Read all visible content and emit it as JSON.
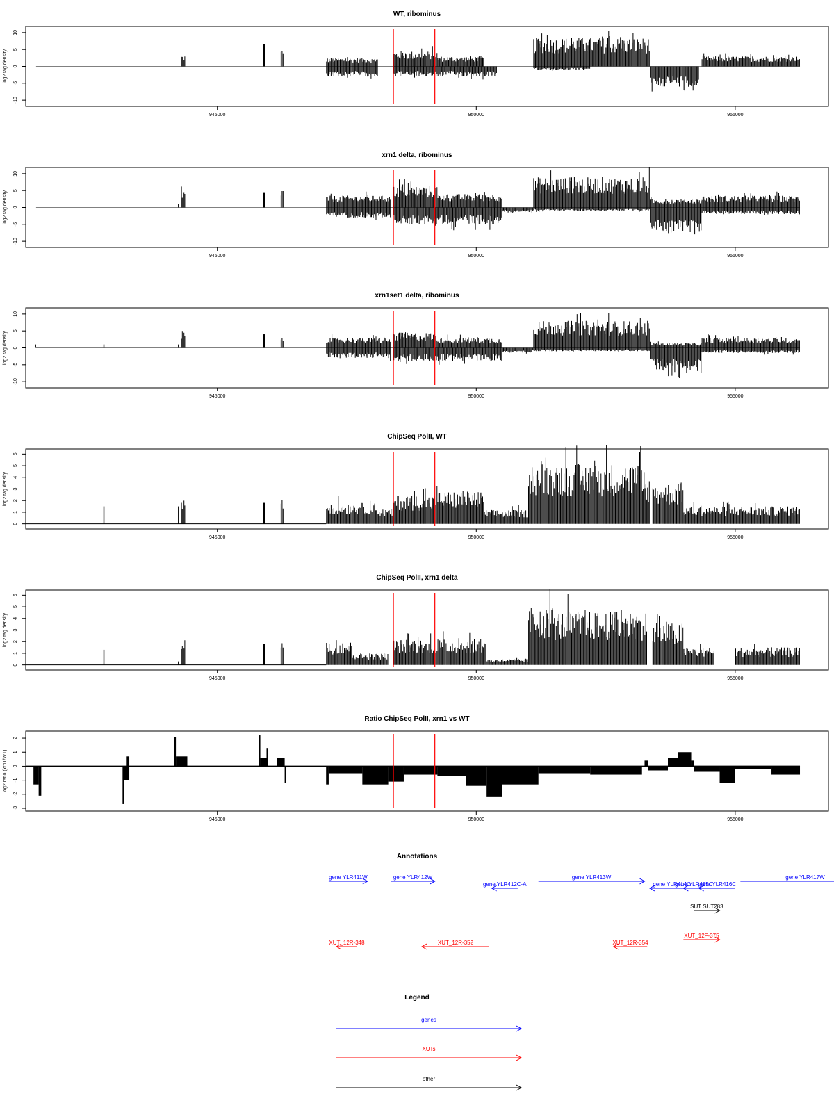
{
  "chart_data": [
    {
      "type": "bar",
      "title": "WT, ribominus",
      "xlabel": "",
      "ylabel": "log2 tag density",
      "xlim": [
        941300,
        956800
      ],
      "ylim": [
        -11,
        11
      ],
      "xticks": [
        "945000",
        "950000",
        "955000"
      ],
      "yticks": [
        "10",
        "5",
        "0",
        "-5",
        "-10"
      ],
      "grid": false,
      "red_lines": [
        948400,
        949200
      ],
      "positive_blocks": [
        {
          "start": 944300,
          "end": 944380,
          "height": 3.5
        },
        {
          "start": 945880,
          "end": 945920,
          "height": 6.5
        },
        {
          "start": 946220,
          "end": 946280,
          "height": 5
        },
        {
          "start": 947100,
          "end": 948100,
          "height": 2.5
        },
        {
          "start": 948400,
          "end": 949250,
          "height": 4.5
        },
        {
          "start": 949250,
          "end": 950150,
          "height": 3
        },
        {
          "start": 951100,
          "end": 953350,
          "height": 8.5
        },
        {
          "start": 954350,
          "end": 956250,
          "height": 3
        }
      ],
      "negative_blocks": [
        {
          "start": 947100,
          "end": 948100,
          "height": -3
        },
        {
          "start": 948400,
          "end": 950400,
          "height": -3
        },
        {
          "start": 951100,
          "end": 952200,
          "height": -1
        },
        {
          "start": 953350,
          "end": 954300,
          "height": -6
        }
      ]
    },
    {
      "type": "bar",
      "title": "xrn1 delta, ribominus",
      "xlabel": "",
      "ylabel": "log2 tag density",
      "xlim": [
        941300,
        956800
      ],
      "ylim": [
        -11,
        11
      ],
      "xticks": [
        "945000",
        "950000",
        "955000"
      ],
      "yticks": [
        "10",
        "5",
        "0",
        "-5",
        "-10"
      ],
      "grid": false,
      "red_lines": [
        948400,
        949200
      ],
      "positive_blocks": [
        {
          "start": 944240,
          "end": 944260,
          "height": 1
        },
        {
          "start": 944300,
          "end": 944380,
          "height": 5.5
        },
        {
          "start": 945880,
          "end": 945920,
          "height": 4.5
        },
        {
          "start": 946220,
          "end": 946280,
          "height": 5.5
        },
        {
          "start": 947100,
          "end": 948350,
          "height": 3.5
        },
        {
          "start": 948400,
          "end": 949250,
          "height": 6.5
        },
        {
          "start": 949250,
          "end": 950500,
          "height": 4
        },
        {
          "start": 951100,
          "end": 953350,
          "height": 9
        },
        {
          "start": 953350,
          "end": 954350,
          "height": 2.5
        },
        {
          "start": 954350,
          "end": 956250,
          "height": 3.5
        }
      ],
      "negative_blocks": [
        {
          "start": 947100,
          "end": 948350,
          "height": -3
        },
        {
          "start": 948400,
          "end": 950500,
          "height": -5
        },
        {
          "start": 950500,
          "end": 951100,
          "height": -1.5
        },
        {
          "start": 951100,
          "end": 953350,
          "height": -1
        },
        {
          "start": 953350,
          "end": 954350,
          "height": -7.5
        },
        {
          "start": 954350,
          "end": 956250,
          "height": -2
        }
      ]
    },
    {
      "type": "bar",
      "title": "xrn1set1 delta, ribominus",
      "xlabel": "",
      "ylabel": "log2 tag density",
      "xlim": [
        941300,
        956800
      ],
      "ylim": [
        -11,
        11
      ],
      "xticks": [
        "945000",
        "950000",
        "955000"
      ],
      "yticks": [
        "10",
        "5",
        "0",
        "-5",
        "-10"
      ],
      "grid": false,
      "red_lines": [
        948400,
        949200
      ],
      "positive_blocks": [
        {
          "start": 941480,
          "end": 941500,
          "height": 1
        },
        {
          "start": 942800,
          "end": 942820,
          "height": 1
        },
        {
          "start": 944240,
          "end": 944260,
          "height": 1
        },
        {
          "start": 944300,
          "end": 944380,
          "height": 5
        },
        {
          "start": 945880,
          "end": 945920,
          "height": 4
        },
        {
          "start": 946220,
          "end": 946280,
          "height": 4
        },
        {
          "start": 947100,
          "end": 948350,
          "height": 3
        },
        {
          "start": 948400,
          "end": 949250,
          "height": 4.5
        },
        {
          "start": 949250,
          "end": 950500,
          "height": 3
        },
        {
          "start": 951100,
          "end": 953350,
          "height": 8
        },
        {
          "start": 953350,
          "end": 954350,
          "height": 1.5
        },
        {
          "start": 954350,
          "end": 956250,
          "height": 3
        }
      ],
      "negative_blocks": [
        {
          "start": 947100,
          "end": 948350,
          "height": -3
        },
        {
          "start": 948400,
          "end": 950500,
          "height": -4
        },
        {
          "start": 950500,
          "end": 951100,
          "height": -1.5
        },
        {
          "start": 951100,
          "end": 953350,
          "height": -1
        },
        {
          "start": 953350,
          "end": 954350,
          "height": -7
        },
        {
          "start": 954350,
          "end": 956250,
          "height": -1.5
        }
      ]
    },
    {
      "type": "bar",
      "title": "ChipSeq PolII, WT",
      "xlabel": "",
      "ylabel": "log2 tag density",
      "xlim": [
        941300,
        956800
      ],
      "ylim": [
        -0.2,
        6.2
      ],
      "xticks": [
        "945000",
        "950000",
        "955000"
      ],
      "yticks": [
        "0",
        "1",
        "2",
        "3",
        "4",
        "5",
        "6"
      ],
      "grid": false,
      "red_lines": [
        948400,
        949200
      ],
      "baseline": {
        "start": 941300,
        "end": 947100
      },
      "positive_blocks": [
        {
          "start": 942800,
          "end": 942820,
          "height": 1.5
        },
        {
          "start": 944240,
          "end": 944260,
          "height": 1.5
        },
        {
          "start": 944300,
          "end": 944380,
          "height": 2.5
        },
        {
          "start": 945880,
          "end": 945920,
          "height": 1.8
        },
        {
          "start": 946220,
          "end": 946280,
          "height": 2.5
        },
        {
          "start": 947100,
          "end": 948100,
          "height": 1.8
        },
        {
          "start": 948100,
          "end": 948400,
          "height": 1.3
        },
        {
          "start": 948400,
          "end": 949250,
          "height": 2.5
        },
        {
          "start": 949250,
          "end": 950150,
          "height": 2.8
        },
        {
          "start": 950150,
          "end": 951000,
          "height": 1.2
        },
        {
          "start": 951000,
          "end": 951600,
          "height": 5.3
        },
        {
          "start": 951600,
          "end": 953200,
          "height": 5.2
        },
        {
          "start": 953200,
          "end": 953350,
          "height": 4
        },
        {
          "start": 953400,
          "end": 954000,
          "height": 3.5
        },
        {
          "start": 954000,
          "end": 956250,
          "height": 1.5
        }
      ]
    },
    {
      "type": "bar",
      "title": "ChipSeq PolII, xrn1 delta",
      "xlabel": "",
      "ylabel": "log2 tag density",
      "xlim": [
        941300,
        956800
      ],
      "ylim": [
        -0.2,
        6.2
      ],
      "xticks": [
        "945000",
        "950000",
        "955000"
      ],
      "yticks": [
        "0",
        "1",
        "2",
        "3",
        "4",
        "5",
        "6"
      ],
      "grid": false,
      "red_lines": [
        948400,
        949200
      ],
      "baseline": {
        "start": 941300,
        "end": 947100
      },
      "positive_blocks": [
        {
          "start": 942800,
          "end": 942820,
          "height": 1.3
        },
        {
          "start": 944240,
          "end": 944260,
          "height": 0.3
        },
        {
          "start": 944300,
          "end": 944380,
          "height": 2.6
        },
        {
          "start": 945880,
          "end": 945920,
          "height": 1.8
        },
        {
          "start": 946220,
          "end": 946280,
          "height": 2.3
        },
        {
          "start": 947100,
          "end": 947600,
          "height": 2
        },
        {
          "start": 947600,
          "end": 948300,
          "height": 1
        },
        {
          "start": 948400,
          "end": 949250,
          "height": 2.2
        },
        {
          "start": 949250,
          "end": 950200,
          "height": 2.2
        },
        {
          "start": 950200,
          "end": 951000,
          "height": 0.5
        },
        {
          "start": 951000,
          "end": 951500,
          "height": 5
        },
        {
          "start": 951500,
          "end": 953300,
          "height": 4.6
        },
        {
          "start": 953400,
          "end": 954000,
          "height": 3.6
        },
        {
          "start": 954000,
          "end": 954600,
          "height": 1.5
        },
        {
          "start": 955000,
          "end": 956250,
          "height": 1.5
        }
      ]
    },
    {
      "type": "area",
      "title": "Ratio ChipSeq PolII, xrn1 vs WT",
      "xlabel": "",
      "ylabel": "log2 ratio (xrn1/WT)",
      "xlim": [
        941300,
        956800
      ],
      "ylim": [
        -3,
        2.3
      ],
      "xticks": [
        "945000",
        "950000",
        "955000"
      ],
      "yticks": [
        "2",
        "1",
        "0",
        "-1",
        "-2",
        "-3"
      ],
      "grid": false,
      "red_lines": [
        948400,
        949200
      ],
      "baseline": {
        "start": 941300,
        "end": 956250
      },
      "positive_blocks": [
        {
          "start": 943250,
          "end": 943300,
          "height": 0.7
        },
        {
          "start": 944160,
          "end": 944200,
          "height": 2.1
        },
        {
          "start": 944200,
          "end": 944420,
          "height": 0.7
        },
        {
          "start": 945800,
          "end": 945830,
          "height": 2.2
        },
        {
          "start": 945830,
          "end": 945950,
          "height": 0.6
        },
        {
          "start": 945950,
          "end": 945980,
          "height": 1.3
        },
        {
          "start": 946150,
          "end": 946300,
          "height": 0.6
        },
        {
          "start": 953250,
          "end": 953320,
          "height": 0.4
        },
        {
          "start": 953700,
          "end": 953900,
          "height": 0.6
        },
        {
          "start": 953900,
          "end": 954150,
          "height": 1.0
        },
        {
          "start": 954150,
          "end": 954200,
          "height": 0.4
        }
      ],
      "negative_blocks": [
        {
          "start": 941450,
          "end": 941550,
          "height": -1.3
        },
        {
          "start": 941550,
          "end": 941600,
          "height": -2.1
        },
        {
          "start": 943170,
          "end": 943200,
          "height": -2.7
        },
        {
          "start": 943200,
          "end": 943300,
          "height": -1
        },
        {
          "start": 946300,
          "end": 946330,
          "height": -1.2
        },
        {
          "start": 947100,
          "end": 947150,
          "height": -1.3
        },
        {
          "start": 947150,
          "end": 947800,
          "height": -0.5
        },
        {
          "start": 947800,
          "end": 948300,
          "height": -1.3
        },
        {
          "start": 948300,
          "end": 948600,
          "height": -1.1
        },
        {
          "start": 948600,
          "end": 949250,
          "height": -0.6
        },
        {
          "start": 949250,
          "end": 949800,
          "height": -0.7
        },
        {
          "start": 949800,
          "end": 950200,
          "height": -1.4
        },
        {
          "start": 950200,
          "end": 950500,
          "height": -2.2
        },
        {
          "start": 950500,
          "end": 951200,
          "height": -1.3
        },
        {
          "start": 951200,
          "end": 952200,
          "height": -0.5
        },
        {
          "start": 952200,
          "end": 953200,
          "height": -0.6
        },
        {
          "start": 953320,
          "end": 953700,
          "height": -0.3
        },
        {
          "start": 954200,
          "end": 954700,
          "height": -0.4
        },
        {
          "start": 954700,
          "end": 955000,
          "height": -1.2
        },
        {
          "start": 955000,
          "end": 955700,
          "height": -0.2
        },
        {
          "start": 955700,
          "end": 956250,
          "height": -0.6
        }
      ]
    },
    {
      "type": "annotation-track",
      "title": "Annotations",
      "features": [
        {
          "label": "gene YLR411W",
          "category": "gene",
          "start": 947150,
          "end": 947900,
          "strand": "+",
          "row": 0
        },
        {
          "label": "gene YLR412W",
          "category": "gene",
          "start": 948350,
          "end": 949200,
          "strand": "+",
          "row": 0
        },
        {
          "label": "gene YLR412C-A",
          "category": "gene",
          "start": 950300,
          "end": 950800,
          "strand": "-",
          "row": 1
        },
        {
          "label": "gene YLR413W",
          "category": "gene",
          "start": 951200,
          "end": 953250,
          "strand": "+",
          "row": 0
        },
        {
          "label": "gene YLR414C",
          "category": "gene",
          "start": 953350,
          "end": 954200,
          "strand": "-",
          "row": 1
        },
        {
          "label": "gene YLR415C",
          "category": "gene",
          "start": 954000,
          "end": 954400,
          "strand": "-",
          "row": 1
        },
        {
          "label": "gene YLR416C",
          "category": "gene",
          "start": 954300,
          "end": 955000,
          "strand": "-",
          "row": 1
        },
        {
          "label": "gene YLR417W",
          "category": "gene",
          "start": 955100,
          "end": 957600,
          "strand": "+",
          "row": 0
        },
        {
          "label": "SUT SUT283",
          "category": "other",
          "start": 954200,
          "end": 954700,
          "strand": "+",
          "row": 2
        },
        {
          "label": "XUT_12F-375",
          "category": "XUT",
          "start": 954000,
          "end": 954700,
          "strand": "+",
          "row": 3
        },
        {
          "label": "XUT_12R-348",
          "category": "XUT",
          "start": 947300,
          "end": 947700,
          "strand": "-",
          "row": 4
        },
        {
          "label": "XUT_12R-352",
          "category": "XUT",
          "start": 948950,
          "end": 950250,
          "strand": "-",
          "row": 4
        },
        {
          "label": "XUT_12R-354",
          "category": "XUT",
          "start": 952650,
          "end": 953300,
          "strand": "-",
          "row": 4
        }
      ]
    }
  ],
  "colors": {
    "data": "#000000",
    "frame": "#000000",
    "red_line": "#ff0000",
    "gene": "#0000ff",
    "xut": "#ff0000",
    "other": "#000000",
    "zero_line": "#808080"
  },
  "legend": {
    "title": "Legend",
    "items": [
      {
        "label": "genes",
        "category": "gene"
      },
      {
        "label": "XUTs",
        "category": "XUT"
      },
      {
        "label": "other",
        "category": "other"
      }
    ]
  }
}
